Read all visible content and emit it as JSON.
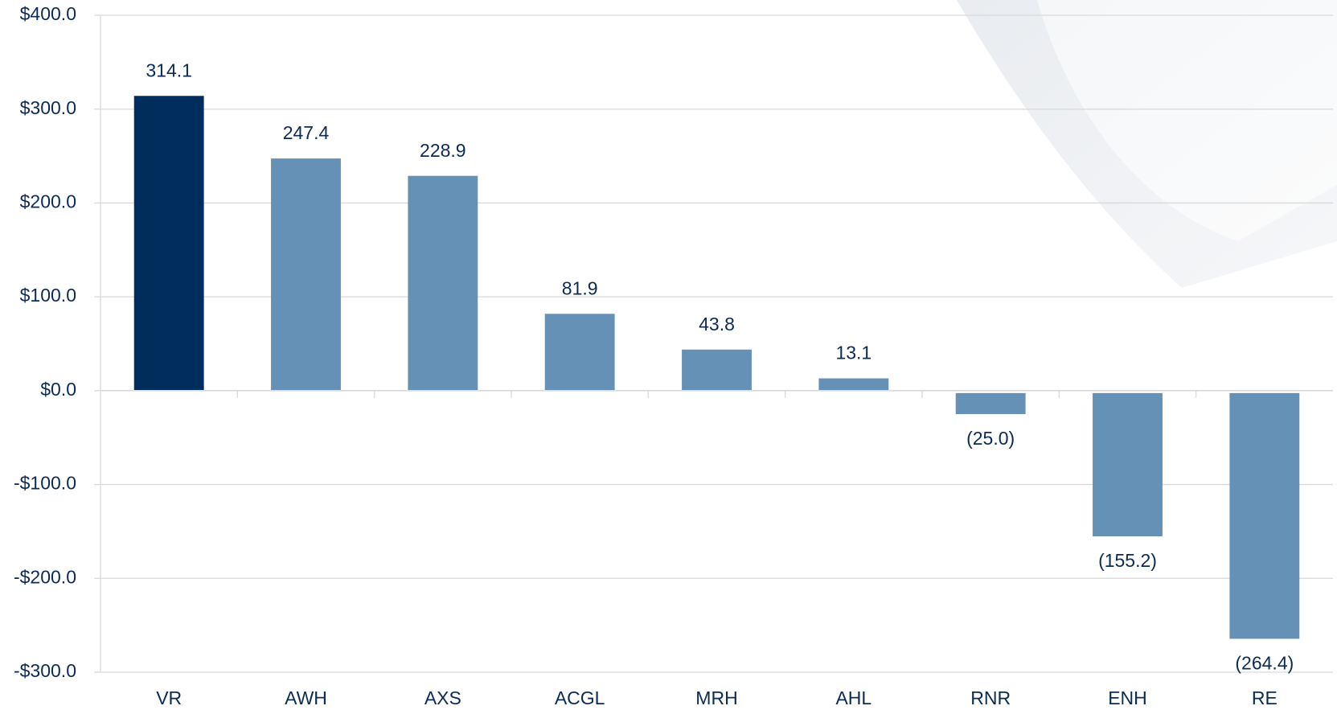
{
  "chart_data": {
    "type": "bar",
    "categories": [
      "VR",
      "AWH",
      "AXS",
      "ACGL",
      "MRH",
      "AHL",
      "RNR",
      "ENH",
      "RE"
    ],
    "values": [
      314.1,
      247.4,
      228.9,
      81.9,
      43.8,
      13.1,
      -25.0,
      -155.2,
      -264.4
    ],
    "value_labels": [
      "314.1",
      "247.4",
      "228.9",
      "81.9",
      "43.8",
      "13.1",
      "(25.0)",
      "(155.2)",
      "(264.4)"
    ],
    "colors": [
      "#002d5b",
      "#6591b7",
      "#6591b7",
      "#6591b7",
      "#6591b7",
      "#6591b7",
      "#6591b7",
      "#6591b7",
      "#6591b7"
    ],
    "ylim": [
      -300,
      400
    ],
    "yticks": [
      {
        "value": -300,
        "label": "-$300.0"
      },
      {
        "value": -200,
        "label": "-$200.0"
      },
      {
        "value": -100,
        "label": "-$100.0"
      },
      {
        "value": 0,
        "label": "$0.0"
      },
      {
        "value": 100,
        "label": "$100.0"
      },
      {
        "value": 200,
        "label": "$200.0"
      },
      {
        "value": 300,
        "label": "$300.0"
      },
      {
        "value": 400,
        "label": "$400.0"
      }
    ],
    "grid": true
  }
}
